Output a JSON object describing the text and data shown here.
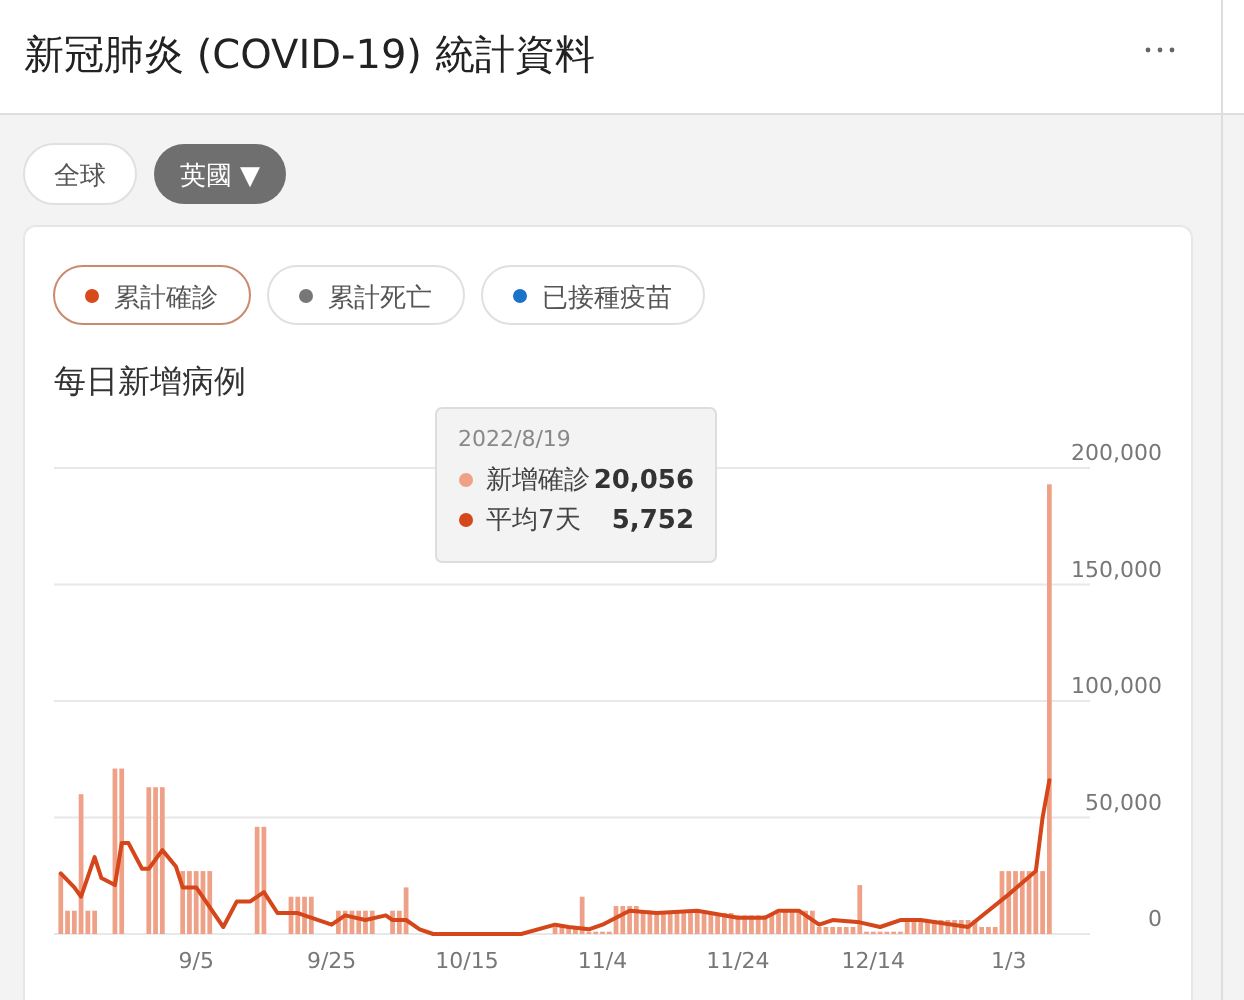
{
  "chart_data": {
    "type": "bar",
    "title": "新冠肺炎 (COVID-19) 統計資料",
    "subtitle": "每日新增病例",
    "annotations": [
      "全球",
      "英國 ▼",
      "累計確診",
      "累計死亡",
      "已接種疫苗",
      "2022/8/19",
      "20,056",
      "5,752"
    ],
    "legend": "top",
    "grid": "y",
    "x": [
      "2022-08-16",
      "2022-08-17",
      "2022-08-18",
      "2022-08-19",
      "2022-08-20",
      "2022-08-21",
      "2022-08-22",
      "2022-08-23",
      "2022-08-24",
      "2022-08-25",
      "2022-08-26",
      "2022-08-27",
      "2022-08-28",
      "2022-08-29",
      "2022-08-30",
      "2022-08-31",
      "2022-09-01",
      "2022-09-02",
      "2022-09-03",
      "2022-09-04",
      "2022-09-05",
      "2022-09-06",
      "2022-09-07",
      "2022-09-08",
      "2022-09-09",
      "2022-09-10",
      "2022-09-11",
      "2022-09-12",
      "2022-09-13",
      "2022-09-14",
      "2022-09-15",
      "2022-09-16",
      "2022-09-17",
      "2022-09-18",
      "2022-09-19",
      "2022-09-20",
      "2022-09-21",
      "2022-09-22",
      "2022-09-23",
      "2022-09-24",
      "2022-09-25",
      "2022-09-26",
      "2022-09-27",
      "2022-09-28",
      "2022-09-29",
      "2022-09-30",
      "2022-10-01",
      "2022-10-02",
      "2022-10-03",
      "2022-10-04",
      "2022-10-05",
      "2022-10-06",
      "2022-10-07",
      "2022-10-08",
      "2022-10-09",
      "2022-10-10",
      "2022-10-11",
      "2022-10-12",
      "2022-10-13",
      "2022-10-14",
      "2022-10-15",
      "2022-10-16",
      "2022-10-17",
      "2022-10-18",
      "2022-10-19",
      "2022-10-20",
      "2022-10-21",
      "2022-10-22",
      "2022-10-23",
      "2022-10-24",
      "2022-10-25",
      "2022-10-26",
      "2022-10-27",
      "2022-10-28",
      "2022-10-29",
      "2022-10-30",
      "2022-10-31",
      "2022-11-01",
      "2022-11-02",
      "2022-11-03",
      "2022-11-04",
      "2022-11-05",
      "2022-11-06",
      "2022-11-07",
      "2022-11-08",
      "2022-11-09",
      "2022-11-10",
      "2022-11-11",
      "2022-11-12",
      "2022-11-13",
      "2022-11-14",
      "2022-11-15",
      "2022-11-16",
      "2022-11-17",
      "2022-11-18",
      "2022-11-19",
      "2022-11-20",
      "2022-11-21",
      "2022-11-22",
      "2022-11-23",
      "2022-11-24",
      "2022-11-25",
      "2022-11-26",
      "2022-11-27",
      "2022-11-28",
      "2022-11-29",
      "2022-11-30",
      "2022-12-01",
      "2022-12-02",
      "2022-12-03",
      "2022-12-04",
      "2022-12-05",
      "2022-12-06",
      "2022-12-07",
      "2022-12-08",
      "2022-12-09",
      "2022-12-10",
      "2022-12-11",
      "2022-12-12",
      "2022-12-13",
      "2022-12-14",
      "2022-12-15",
      "2022-12-16",
      "2022-12-17",
      "2022-12-18",
      "2022-12-19",
      "2022-12-20",
      "2022-12-21",
      "2022-12-22",
      "2022-12-23",
      "2022-12-24",
      "2022-12-25",
      "2022-12-26",
      "2022-12-27",
      "2022-12-28",
      "2022-12-29",
      "2022-12-30",
      "2022-12-31",
      "2023-01-01",
      "2023-01-02",
      "2023-01-03",
      "2023-01-04",
      "2023-01-05",
      "2023-01-06",
      "2023-01-07",
      "2023-01-08",
      "2023-01-09"
    ],
    "series": [
      {
        "name": "新增確診",
        "color": "#eea186",
        "values": [
          26000,
          10000,
          10000,
          60000,
          10000,
          10000,
          0,
          0,
          71000,
          71000,
          0,
          0,
          0,
          63000,
          63000,
          63000,
          0,
          0,
          27000,
          27000,
          27000,
          27000,
          27000,
          0,
          0,
          0,
          0,
          0,
          0,
          46000,
          46000,
          0,
          0,
          0,
          16000,
          16000,
          16000,
          16000,
          0,
          0,
          0,
          10000,
          10000,
          10000,
          10000,
          10000,
          10000,
          0,
          0,
          10000,
          10000,
          20000,
          0,
          0,
          0,
          0,
          0,
          0,
          0,
          0,
          0,
          0,
          0,
          0,
          0,
          0,
          0,
          0,
          0,
          0,
          0,
          0,
          0,
          3000,
          3000,
          3000,
          3000,
          16000,
          1000,
          1000,
          1000,
          1000,
          12000,
          12000,
          12000,
          12000,
          10000,
          10000,
          9000,
          9000,
          9000,
          9000,
          9000,
          9000,
          9000,
          9000,
          9000,
          9000,
          9000,
          9000,
          8000,
          8000,
          8000,
          8000,
          8000,
          9000,
          9000,
          10000,
          10000,
          10000,
          10000,
          10000,
          3000,
          3000,
          3000,
          3000,
          3000,
          3000,
          21000,
          1000,
          1000,
          1000,
          1000,
          1000,
          1000,
          6000,
          6000,
          6000,
          6000,
          6000,
          6000,
          6000,
          6000,
          6000,
          6000,
          6000,
          3000,
          3000,
          3000,
          27000,
          27000,
          27000,
          27000,
          27000,
          27000,
          27000,
          193000
        ]
      },
      {
        "name": "平均7天",
        "type": "line",
        "color": "#d5461b",
        "x": [
          "2022-08-16",
          "2022-08-18",
          "2022-08-19",
          "2022-08-21",
          "2022-08-22",
          "2022-08-24",
          "2022-08-25",
          "2022-08-26",
          "2022-08-28",
          "2022-08-29",
          "2022-08-31",
          "2022-09-02",
          "2022-09-03",
          "2022-09-05",
          "2022-09-09",
          "2022-09-11",
          "2022-09-13",
          "2022-09-15",
          "2022-09-17",
          "2022-09-20",
          "2022-09-25",
          "2022-09-27",
          "2022-09-30",
          "2022-10-03",
          "2022-10-04",
          "2022-10-06",
          "2022-10-08",
          "2022-10-10",
          "2022-10-23",
          "2022-10-28",
          "2022-10-30",
          "2022-11-02",
          "2022-11-04",
          "2022-11-06",
          "2022-11-08",
          "2022-11-12",
          "2022-11-18",
          "2022-11-24",
          "2022-11-28",
          "2022-11-30",
          "2022-12-03",
          "2022-12-06",
          "2022-12-08",
          "2022-12-12",
          "2022-12-15",
          "2022-12-18",
          "2022-12-21",
          "2022-12-28",
          "2023-01-03",
          "2023-01-07",
          "2023-01-08",
          "2023-01-09"
        ],
        "values": [
          26000,
          20000,
          16000,
          33000,
          24000,
          21000,
          39000,
          39000,
          28000,
          28000,
          36000,
          29000,
          20000,
          20000,
          3000,
          14000,
          14000,
          18000,
          9000,
          9000,
          4000,
          8000,
          6000,
          8000,
          6000,
          6000,
          2000,
          0,
          0,
          4000,
          3000,
          2000,
          4000,
          7000,
          10000,
          9000,
          10000,
          7000,
          7000,
          10000,
          10000,
          4000,
          6000,
          5000,
          3000,
          6000,
          6000,
          3000,
          17000,
          27000,
          50000,
          66000
        ]
      }
    ],
    "xlim": [
      "2022-08-15",
      "2023-01-15"
    ],
    "xticks": [
      {
        "value": "2022-09-05",
        "label": "9/5"
      },
      {
        "value": "2022-09-25",
        "label": "9/25"
      },
      {
        "value": "2022-10-15",
        "label": "10/15"
      },
      {
        "value": "2022-11-04",
        "label": "11/4"
      },
      {
        "value": "2022-11-24",
        "label": "11/24"
      },
      {
        "value": "2022-12-14",
        "label": "12/14"
      },
      {
        "value": "2023-01-03",
        "label": "1/3"
      }
    ],
    "ylim": [
      0,
      200000
    ],
    "yticks": [
      0,
      {
        "value": 50000,
        "label": "50,000"
      },
      {
        "value": 100000,
        "label": "100,000"
      },
      {
        "value": 150000,
        "label": "150,000"
      },
      {
        "value": 200000,
        "label": "200,000"
      }
    ]
  }
}
